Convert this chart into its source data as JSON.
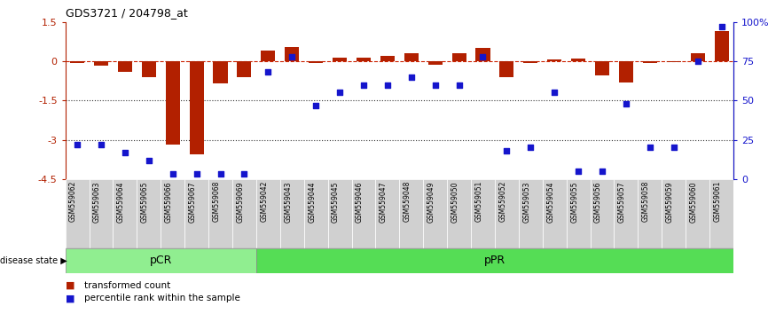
{
  "title": "GDS3721 / 204798_at",
  "samples": [
    "GSM559062",
    "GSM559063",
    "GSM559064",
    "GSM559065",
    "GSM559066",
    "GSM559067",
    "GSM559068",
    "GSM559069",
    "GSM559042",
    "GSM559043",
    "GSM559044",
    "GSM559045",
    "GSM559046",
    "GSM559047",
    "GSM559048",
    "GSM559049",
    "GSM559050",
    "GSM559051",
    "GSM559052",
    "GSM559053",
    "GSM559054",
    "GSM559055",
    "GSM559056",
    "GSM559057",
    "GSM559058",
    "GSM559059",
    "GSM559060",
    "GSM559061"
  ],
  "bar_values": [
    -0.08,
    -0.18,
    -0.4,
    -0.6,
    -3.2,
    -3.55,
    -0.85,
    -0.6,
    0.4,
    0.55,
    -0.05,
    0.12,
    0.15,
    0.22,
    0.32,
    -0.12,
    0.3,
    0.5,
    -0.6,
    -0.08,
    0.08,
    0.1,
    -0.55,
    -0.8,
    -0.05,
    -0.04,
    0.3,
    1.15
  ],
  "percentile_values": [
    22,
    22,
    17,
    12,
    3,
    3,
    3,
    3,
    68,
    78,
    47,
    55,
    60,
    60,
    65,
    60,
    60,
    78,
    18,
    20,
    55,
    5,
    5,
    48,
    20,
    20,
    75,
    97
  ],
  "pCR_count": 8,
  "pPR_count": 20,
  "ylim": [
    -4.5,
    1.5
  ],
  "right_ylim": [
    0,
    100
  ],
  "bar_color": "#B22000",
  "dot_color": "#1515CC",
  "zero_line_color": "#CC2200",
  "dotted_line_color": "#333333",
  "pCR_color": "#90EE90",
  "pPR_color": "#55DD55",
  "legend_bar_label": "transformed count",
  "legend_dot_label": "percentile rank within the sample",
  "disease_state_label": "disease state",
  "right_yticks": [
    0,
    25,
    50,
    75,
    100
  ],
  "right_yticklabels": [
    "0",
    "25",
    "50",
    "75",
    "100%"
  ],
  "left_yticks": [
    -4.5,
    -3.0,
    -1.5,
    0.0,
    1.5
  ],
  "hlines": [
    -1.5,
    -3.0
  ],
  "figsize": [
    8.66,
    3.54
  ],
  "dpi": 100
}
